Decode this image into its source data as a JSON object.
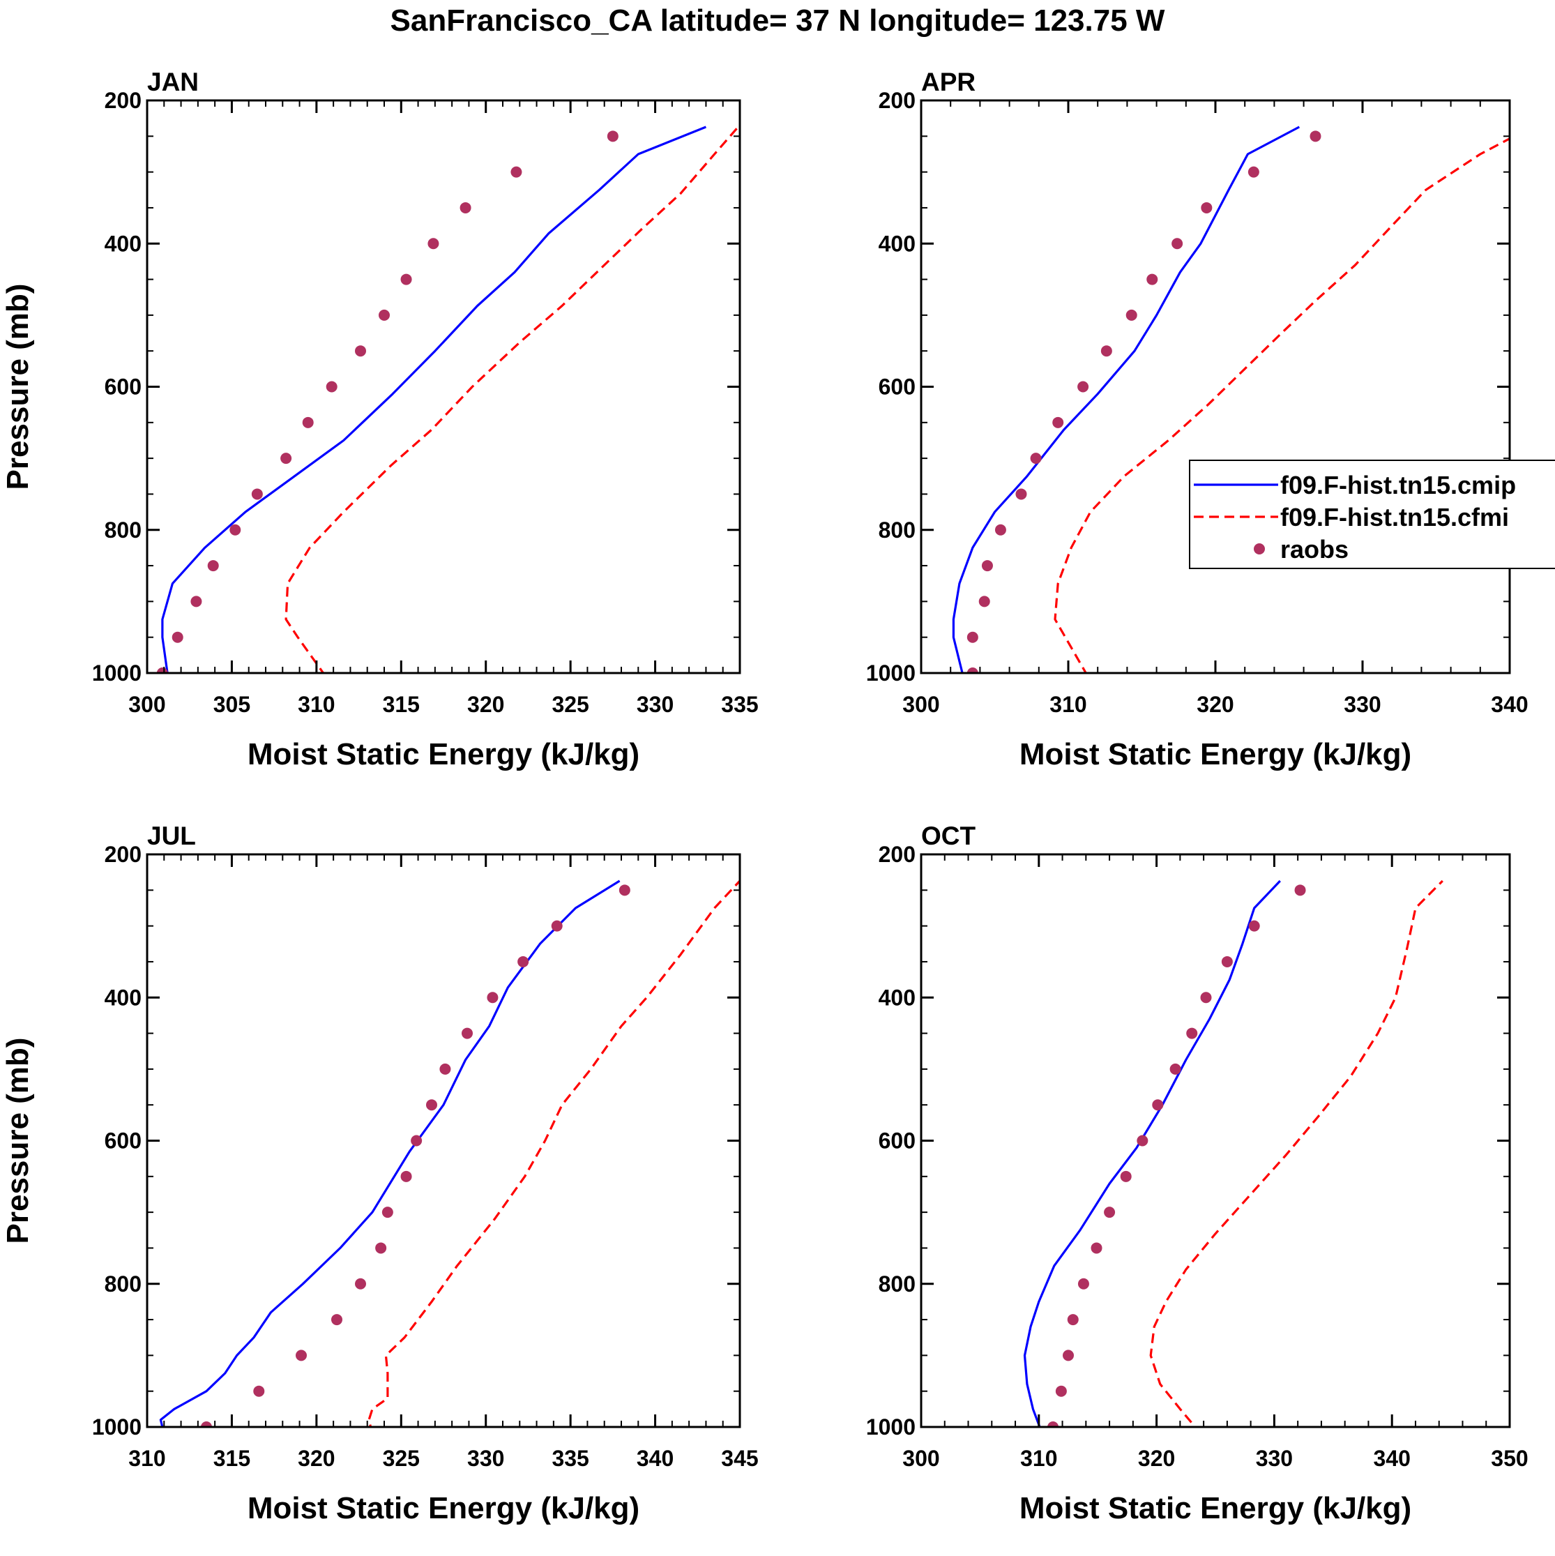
{
  "title": "SanFrancisco_CA  latitude= 37 N longitude= 123.75 W",
  "colors": {
    "model1": "#0000ff",
    "model2": "#ff0000",
    "raobs": "#b0305f",
    "axis": "#000000"
  },
  "legend": {
    "location": "APR panel, right edge",
    "entries": [
      {
        "label": "f09.F-hist.tn15.cmip",
        "style": "solid",
        "color": "#0000ff"
      },
      {
        "label": "f09.F-hist.tn15.cfmi",
        "style": "dashed",
        "color": "#ff0000"
      },
      {
        "label": "raobs",
        "style": "marker",
        "color": "#b0305f"
      }
    ]
  },
  "chart_data": [
    {
      "type": "line",
      "panel": "JAN",
      "xlabel": "Moist Static Energy (kJ/kg)",
      "ylabel": "Pressure (mb)",
      "xlim": [
        300,
        335
      ],
      "ylim": [
        1000,
        200
      ],
      "y_inverted": true,
      "xticks": [
        300,
        305,
        310,
        315,
        320,
        325,
        330,
        335
      ],
      "yticks": [
        200,
        400,
        600,
        800,
        1000
      ],
      "series": [
        {
          "name": "f09.F-hist.tn15.cmip",
          "style": "solid",
          "points": [
            [
              302.2,
              1013
            ],
            [
              301.2,
              1000
            ],
            [
              300.9,
              950
            ],
            [
              300.9,
              925
            ],
            [
              301.5,
              875
            ],
            [
              303.4,
              825
            ],
            [
              305.8,
              775
            ],
            [
              308.7,
              725
            ],
            [
              311.6,
              675
            ],
            [
              314.5,
              610
            ],
            [
              317.0,
              550
            ],
            [
              319.5,
              487
            ],
            [
              321.7,
              440
            ],
            [
              323.7,
              386
            ],
            [
              326.7,
              325
            ],
            [
              329.0,
              275
            ],
            [
              333.0,
              237
            ]
          ]
        },
        {
          "name": "f09.F-hist.tn15.cfmi",
          "style": "dashed",
          "points": [
            [
              311.4,
              1013
            ],
            [
              310.4,
              1000
            ],
            [
              308.9,
              950
            ],
            [
              308.2,
              925
            ],
            [
              308.3,
              875
            ],
            [
              309.6,
              825
            ],
            [
              311.6,
              775
            ],
            [
              314.4,
              710
            ],
            [
              316.8,
              660
            ],
            [
              319.2,
              600
            ],
            [
              322.0,
              538
            ],
            [
              324.5,
              487
            ],
            [
              327.0,
              430
            ],
            [
              329.2,
              380
            ],
            [
              331.5,
              330
            ],
            [
              333.5,
              275
            ],
            [
              334.9,
              237
            ]
          ]
        },
        {
          "name": "raobs",
          "style": "marker",
          "points": [
            [
              327.5,
              250
            ],
            [
              321.8,
              300
            ],
            [
              318.8,
              350
            ],
            [
              316.9,
              400
            ],
            [
              315.3,
              450
            ],
            [
              314.0,
              500
            ],
            [
              312.6,
              550
            ],
            [
              310.9,
              600
            ],
            [
              309.5,
              650
            ],
            [
              308.2,
              700
            ],
            [
              306.5,
              750
            ],
            [
              305.2,
              800
            ],
            [
              303.9,
              850
            ],
            [
              302.9,
              900
            ],
            [
              301.8,
              950
            ],
            [
              300.9,
              1000
            ]
          ]
        }
      ]
    },
    {
      "type": "line",
      "panel": "APR",
      "xlabel": "Moist Static Energy (kJ/kg)",
      "ylabel": "",
      "xlim": [
        300,
        340
      ],
      "ylim": [
        1000,
        200
      ],
      "y_inverted": true,
      "xticks": [
        300,
        310,
        320,
        330,
        340
      ],
      "yticks": [
        200,
        400,
        600,
        800,
        1000
      ],
      "series": [
        {
          "name": "f09.F-hist.tn15.cmip",
          "style": "solid",
          "points": [
            [
              303.1,
              1013
            ],
            [
              302.8,
              1000
            ],
            [
              302.2,
              950
            ],
            [
              302.2,
              925
            ],
            [
              302.6,
              875
            ],
            [
              303.5,
              825
            ],
            [
              305.0,
              775
            ],
            [
              307.2,
              725
            ],
            [
              309.7,
              660
            ],
            [
              312.0,
              610
            ],
            [
              314.5,
              550
            ],
            [
              316.0,
              500
            ],
            [
              317.6,
              440
            ],
            [
              319.0,
              400
            ],
            [
              320.9,
              325
            ],
            [
              322.2,
              275
            ],
            [
              325.7,
              237
            ]
          ]
        },
        {
          "name": "f09.F-hist.tn15.cfmi",
          "style": "dashed",
          "points": [
            [
              312.3,
              1013
            ],
            [
              311.2,
              1000
            ],
            [
              309.8,
              950
            ],
            [
              309.1,
              925
            ],
            [
              309.3,
              875
            ],
            [
              310.2,
              825
            ],
            [
              311.5,
              775
            ],
            [
              313.8,
              725
            ],
            [
              316.8,
              675
            ],
            [
              319.5,
              625
            ],
            [
              322.0,
              575
            ],
            [
              324.5,
              525
            ],
            [
              326.8,
              480
            ],
            [
              329.5,
              430
            ],
            [
              332.0,
              375
            ],
            [
              334.3,
              325
            ],
            [
              338.0,
              275
            ],
            [
              341.5,
              237
            ]
          ]
        },
        {
          "name": "raobs",
          "style": "marker",
          "points": [
            [
              326.8,
              250
            ],
            [
              322.6,
              300
            ],
            [
              319.4,
              350
            ],
            [
              317.4,
              400
            ],
            [
              315.7,
              450
            ],
            [
              314.3,
              500
            ],
            [
              312.6,
              550
            ],
            [
              311.0,
              600
            ],
            [
              309.3,
              650
            ],
            [
              307.8,
              700
            ],
            [
              306.8,
              750
            ],
            [
              305.4,
              800
            ],
            [
              304.5,
              850
            ],
            [
              304.3,
              900
            ],
            [
              303.5,
              950
            ],
            [
              303.5,
              1000
            ]
          ]
        }
      ]
    },
    {
      "type": "line",
      "panel": "JUL",
      "xlabel": "Moist Static Energy (kJ/kg)",
      "ylabel": "Pressure (mb)",
      "xlim": [
        310,
        345
      ],
      "ylim": [
        1000,
        200
      ],
      "y_inverted": true,
      "xticks": [
        310,
        315,
        320,
        325,
        330,
        335,
        340,
        345
      ],
      "yticks": [
        200,
        400,
        600,
        800,
        1000
      ],
      "series": [
        {
          "name": "f09.F-hist.tn15.cmip",
          "style": "solid",
          "points": [
            [
              311.0,
              1010
            ],
            [
              310.8,
              990
            ],
            [
              311.6,
              975
            ],
            [
              313.5,
              950
            ],
            [
              314.6,
              925
            ],
            [
              315.3,
              900
            ],
            [
              316.3,
              875
            ],
            [
              317.3,
              840
            ],
            [
              319.2,
              800
            ],
            [
              321.4,
              750
            ],
            [
              323.3,
              700
            ],
            [
              325.5,
              615
            ],
            [
              327.5,
              550
            ],
            [
              328.8,
              487
            ],
            [
              330.2,
              440
            ],
            [
              331.3,
              386
            ],
            [
              333.2,
              325
            ],
            [
              335.3,
              275
            ],
            [
              337.9,
              237
            ]
          ]
        },
        {
          "name": "f09.F-hist.tn15.cfmi",
          "style": "dashed",
          "points": [
            [
              323.3,
              1010
            ],
            [
              323.1,
              990
            ],
            [
              323.3,
              975
            ],
            [
              324.2,
              960
            ],
            [
              324.2,
              925
            ],
            [
              324.1,
              900
            ],
            [
              325.2,
              875
            ],
            [
              326.8,
              825
            ],
            [
              328.3,
              775
            ],
            [
              330.5,
              710
            ],
            [
              332.3,
              650
            ],
            [
              333.5,
              600
            ],
            [
              334.5,
              550
            ],
            [
              336.2,
              500
            ],
            [
              338.0,
              440
            ],
            [
              339.5,
              400
            ],
            [
              341.5,
              340
            ],
            [
              343.5,
              275
            ],
            [
              345.0,
              237
            ]
          ]
        },
        {
          "name": "raobs",
          "style": "marker",
          "points": [
            [
              338.2,
              250
            ],
            [
              334.2,
              300
            ],
            [
              332.2,
              350
            ],
            [
              330.4,
              400
            ],
            [
              328.9,
              450
            ],
            [
              327.6,
              500
            ],
            [
              326.8,
              550
            ],
            [
              325.9,
              600
            ],
            [
              325.3,
              650
            ],
            [
              324.2,
              700
            ],
            [
              323.8,
              750
            ],
            [
              322.6,
              800
            ],
            [
              321.2,
              850
            ],
            [
              319.1,
              900
            ],
            [
              316.6,
              950
            ],
            [
              313.5,
              1000
            ]
          ]
        }
      ]
    },
    {
      "type": "line",
      "panel": "OCT",
      "xlabel": "Moist Static Energy (kJ/kg)",
      "ylabel": "",
      "xlim": [
        300,
        350
      ],
      "ylim": [
        1000,
        200
      ],
      "y_inverted": true,
      "xticks": [
        300,
        310,
        320,
        330,
        340,
        350
      ],
      "yticks": [
        200,
        400,
        600,
        800,
        1000
      ],
      "series": [
        {
          "name": "f09.F-hist.tn15.cmip",
          "style": "solid",
          "points": [
            [
              310.3,
              1010
            ],
            [
              309.5,
              975
            ],
            [
              309.0,
              940
            ],
            [
              308.8,
              900
            ],
            [
              309.3,
              860
            ],
            [
              310.0,
              825
            ],
            [
              311.3,
              775
            ],
            [
              313.5,
              725
            ],
            [
              316.0,
              660
            ],
            [
              318.3,
              610
            ],
            [
              320.5,
              550
            ],
            [
              322.5,
              487
            ],
            [
              324.5,
              430
            ],
            [
              326.2,
              375
            ],
            [
              327.3,
              325
            ],
            [
              328.3,
              275
            ],
            [
              330.5,
              237
            ]
          ]
        },
        {
          "name": "f09.F-hist.tn15.cfmi",
          "style": "dashed",
          "points": [
            [
              323.8,
              1010
            ],
            [
              322.0,
              975
            ],
            [
              320.3,
              940
            ],
            [
              319.5,
              900
            ],
            [
              319.8,
              860
            ],
            [
              320.8,
              825
            ],
            [
              322.5,
              780
            ],
            [
              325.0,
              730
            ],
            [
              328.0,
              675
            ],
            [
              331.0,
              620
            ],
            [
              333.8,
              565
            ],
            [
              336.5,
              510
            ],
            [
              338.8,
              450
            ],
            [
              340.3,
              400
            ],
            [
              341.3,
              330
            ],
            [
              342.0,
              275
            ],
            [
              344.3,
              237
            ]
          ]
        },
        {
          "name": "raobs",
          "style": "marker",
          "points": [
            [
              332.2,
              250
            ],
            [
              328.3,
              300
            ],
            [
              326.0,
              350
            ],
            [
              324.2,
              400
            ],
            [
              323.0,
              450
            ],
            [
              321.6,
              500
            ],
            [
              320.1,
              550
            ],
            [
              318.8,
              600
            ],
            [
              317.4,
              650
            ],
            [
              316.0,
              700
            ],
            [
              314.9,
              750
            ],
            [
              313.8,
              800
            ],
            [
              312.9,
              850
            ],
            [
              312.5,
              900
            ],
            [
              311.9,
              950
            ],
            [
              311.2,
              1000
            ]
          ]
        }
      ]
    }
  ]
}
